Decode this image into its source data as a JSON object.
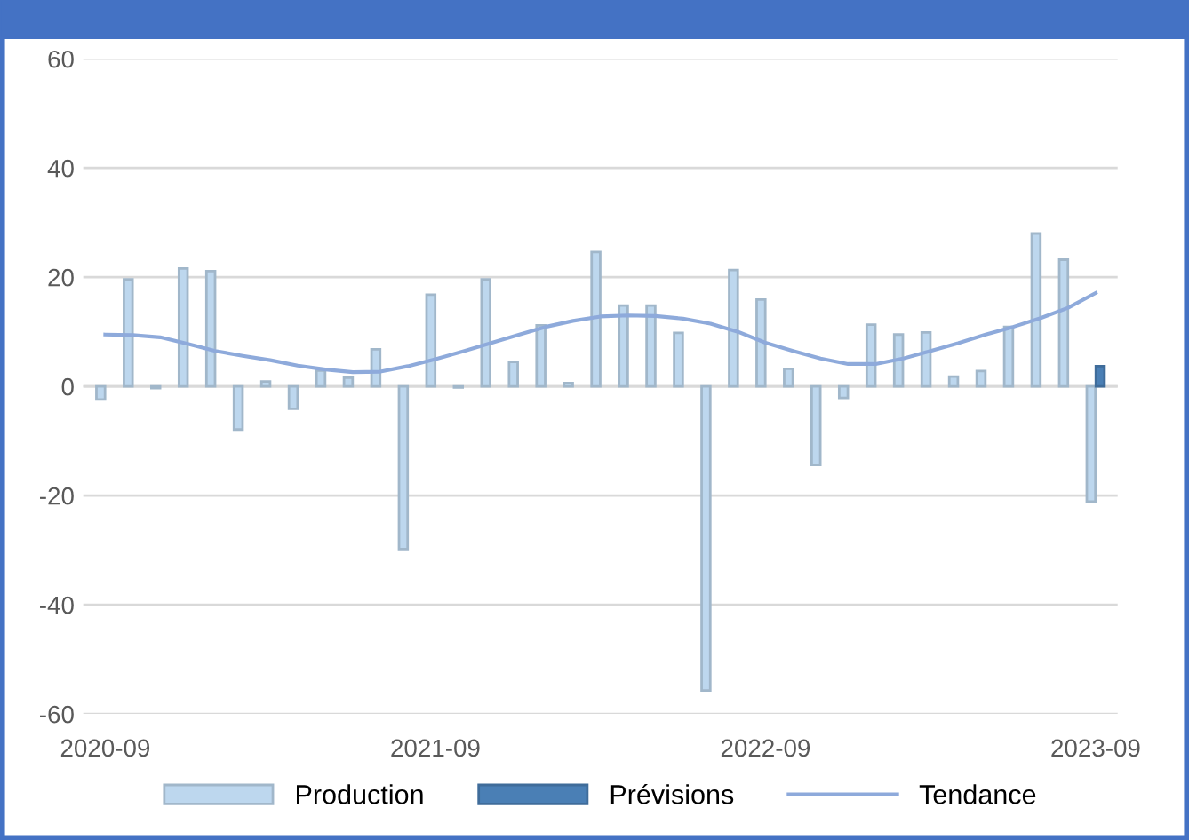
{
  "chart_data": {
    "type": "bar",
    "categories": [
      "2020-09",
      null,
      null,
      null,
      null,
      null,
      null,
      null,
      null,
      null,
      null,
      null,
      "2021-09",
      null,
      null,
      null,
      null,
      null,
      null,
      null,
      null,
      null,
      null,
      null,
      "2022-09",
      null,
      null,
      null,
      null,
      null,
      null,
      null,
      null,
      null,
      null,
      null,
      "2023-09"
    ],
    "series": [
      {
        "name": "Production",
        "color": "#bdd7ee",
        "values": [
          -2.4,
          19.6,
          -0.3,
          21.6,
          21.1,
          -7.9,
          0.9,
          -4.1,
          2.9,
          1.6,
          6.8,
          -29.8,
          16.8,
          -0.2,
          19.6,
          4.5,
          11.2,
          0.6,
          24.6,
          14.8,
          14.8,
          9.8,
          -55.7,
          21.3,
          15.9,
          3.2,
          -14.4,
          -2.1,
          11.3,
          9.5,
          9.9,
          1.8,
          2.8,
          10.9,
          28.0,
          23.2,
          -21.1
        ]
      },
      {
        "name": "Prévisions",
        "color": "#4a7fb5",
        "values": [
          null,
          null,
          null,
          null,
          null,
          null,
          null,
          null,
          null,
          null,
          null,
          null,
          null,
          null,
          null,
          null,
          null,
          null,
          null,
          null,
          null,
          null,
          null,
          null,
          null,
          null,
          null,
          null,
          null,
          null,
          null,
          null,
          null,
          null,
          null,
          null,
          3.7
        ]
      },
      {
        "name": "Tendance",
        "type": "line",
        "color": "#8eaadb",
        "values": [
          9.5,
          9.4,
          9.0,
          7.8,
          6.5,
          5.6,
          4.8,
          3.8,
          3.1,
          2.6,
          2.7,
          3.7,
          5.0,
          6.4,
          7.9,
          9.4,
          10.9,
          12.0,
          12.8,
          13.0,
          12.9,
          12.4,
          11.5,
          10.0,
          8.0,
          6.5,
          5.1,
          4.1,
          4.1,
          5.1,
          6.5,
          7.9,
          9.5,
          10.9,
          12.5,
          14.4,
          17.1
        ]
      }
    ],
    "ylim": [
      -60,
      60
    ],
    "yticks": [
      -60,
      -40,
      -20,
      0,
      20,
      40,
      60
    ],
    "grid": "y",
    "legend": "bottom",
    "marker": "none",
    "line_style": "solid"
  }
}
